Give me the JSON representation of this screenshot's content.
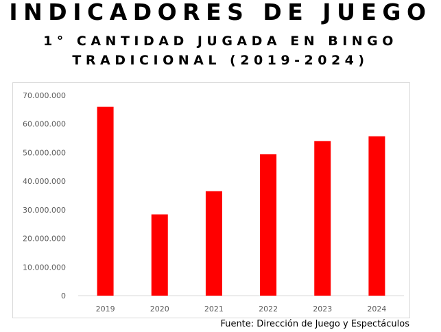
{
  "header": {
    "title": "INDICADORES DE JUEGO",
    "subtitle_line1": "1° CANTIDAD JUGADA EN BINGO",
    "subtitle_line2": "TRADICIONAL (2019-2024)"
  },
  "chart_data": {
    "type": "bar",
    "categories": [
      "2019",
      "2020",
      "2021",
      "2022",
      "2023",
      "2024"
    ],
    "values": [
      66000000,
      28400000,
      36500000,
      49400000,
      54000000,
      55700000
    ],
    "ylim": [
      0,
      70000000
    ],
    "yticks": [
      "0",
      "10.000.000",
      "20.000.000",
      "30.000.000",
      "40.000.000",
      "50.000.000",
      "60.000.000",
      "70.000.000"
    ],
    "title": "",
    "xlabel": "",
    "ylabel": "",
    "bar_color": "#ff0000",
    "grid": false
  },
  "footer": {
    "source": "Fuente: Dirección de Juego y Espectáculos"
  }
}
